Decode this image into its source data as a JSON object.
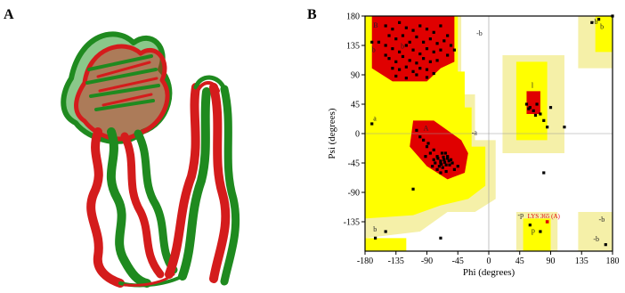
{
  "figure": {
    "panel_a_label": "A",
    "panel_b_label": "B"
  },
  "colors": {
    "protein_red": "#d41c1c",
    "protein_green": "#1f8a1f",
    "core_region": "#e00000",
    "allowed_region": "#ffff00",
    "generous_region": "#f5f0a8",
    "plot_frame": "#000000"
  },
  "ramachandran": {
    "xlabel": "Phi (degrees)",
    "ylabel": "Psi (degrees)",
    "x_ticks": [
      "-180",
      "-135",
      "-90",
      "-45",
      "0",
      "45",
      "90",
      "135",
      "180"
    ],
    "y_ticks": [
      "180",
      "135",
      "90",
      "45",
      "0",
      "-45",
      "-90",
      "-135"
    ],
    "region_labels": [
      "B",
      "b",
      "b",
      "-b",
      "b",
      "a",
      "A",
      "l",
      "-a",
      "-b",
      "-p",
      "p",
      "-b",
      "-b",
      "b"
    ],
    "outlier_label": "LYS 365 (A)"
  },
  "chart_data": {
    "type": "scatter",
    "title": "",
    "xlabel": "Phi (degrees)",
    "ylabel": "Psi (degrees)",
    "xlim": [
      -180,
      180
    ],
    "ylim": [
      -180,
      180
    ],
    "grid": true,
    "series": [
      {
        "points": [
          [
            -150,
            165
          ],
          [
            -140,
            160
          ],
          [
            -130,
            170
          ],
          [
            -120,
            162
          ],
          [
            -110,
            158
          ],
          [
            -100,
            165
          ],
          [
            -90,
            160
          ],
          [
            -80,
            155
          ],
          [
            -70,
            165
          ],
          [
            -60,
            150
          ],
          [
            -145,
            150
          ],
          [
            -135,
            145
          ],
          [
            -125,
            150
          ],
          [
            -115,
            140
          ],
          [
            -105,
            148
          ],
          [
            -95,
            140
          ],
          [
            -85,
            145
          ],
          [
            -75,
            138
          ],
          [
            -65,
            142
          ],
          [
            -150,
            135
          ],
          [
            -140,
            130
          ],
          [
            -130,
            125
          ],
          [
            -120,
            135
          ],
          [
            -110,
            128
          ],
          [
            -100,
            122
          ],
          [
            -90,
            130
          ],
          [
            -80,
            125
          ],
          [
            -70,
            128
          ],
          [
            -60,
            120
          ],
          [
            -145,
            115
          ],
          [
            -135,
            110
          ],
          [
            -125,
            118
          ],
          [
            -115,
            112
          ],
          [
            -105,
            108
          ],
          [
            -95,
            115
          ],
          [
            -85,
            110
          ],
          [
            -75,
            112
          ],
          [
            -140,
            100
          ],
          [
            -130,
            98
          ],
          [
            -120,
            102
          ],
          [
            -110,
            95
          ],
          [
            -100,
            100
          ],
          [
            -90,
            98
          ],
          [
            -80,
            92
          ],
          [
            -135,
            88
          ],
          [
            -120,
            85
          ],
          [
            -105,
            90
          ],
          [
            -90,
            86
          ],
          [
            -150,
            120
          ],
          [
            -160,
            140
          ],
          [
            -55,
            135
          ],
          [
            -50,
            128
          ],
          [
            -80,
            -40
          ],
          [
            -75,
            -35
          ],
          [
            -70,
            -45
          ],
          [
            -65,
            -40
          ],
          [
            -60,
            -38
          ],
          [
            -68,
            -30
          ],
          [
            -72,
            -50
          ],
          [
            -62,
            -48
          ],
          [
            -58,
            -42
          ],
          [
            -66,
            -36
          ],
          [
            -78,
            -45
          ],
          [
            -70,
            -42
          ],
          [
            -64,
            -44
          ],
          [
            -60,
            -35
          ],
          [
            -55,
            -40
          ],
          [
            -74,
            -38
          ],
          [
            -69,
            -47
          ],
          [
            -63,
            -30
          ],
          [
            -57,
            -48
          ],
          [
            -67,
            -52
          ],
          [
            -85,
            -30
          ],
          [
            -90,
            -20
          ],
          [
            -95,
            -10
          ],
          [
            -100,
            -5
          ],
          [
            -80,
            -25
          ],
          [
            -88,
            -15
          ],
          [
            -92,
            -35
          ],
          [
            -50,
            -55
          ],
          [
            -45,
            -50
          ],
          [
            -75,
            -55
          ],
          [
            -105,
            5
          ],
          [
            -70,
            -60
          ],
          [
            -62,
            -58
          ],
          [
            -53,
            -45
          ],
          [
            -82,
            -50
          ],
          [
            -110,
            -85
          ],
          [
            55,
            45
          ],
          [
            60,
            40
          ],
          [
            65,
            35
          ],
          [
            70,
            45
          ],
          [
            75,
            30
          ],
          [
            80,
            20
          ],
          [
            90,
            40
          ],
          [
            58,
            38
          ],
          [
            68,
            28
          ],
          [
            85,
            10
          ],
          [
            180,
            180
          ],
          [
            -165,
            -160
          ],
          [
            -150,
            -150
          ],
          [
            -70,
            -160
          ],
          [
            80,
            -60
          ],
          [
            -170,
            15
          ],
          [
            60,
            -140
          ],
          [
            75,
            -150
          ],
          [
            110,
            10
          ],
          [
            160,
            175
          ],
          [
            170,
            -170
          ],
          [
            150,
            170
          ],
          [
            -170,
            140
          ]
        ]
      },
      {
        "name": "LYS 365 (A)",
        "points": [
          [
            85,
            -135
          ]
        ]
      }
    ]
  }
}
